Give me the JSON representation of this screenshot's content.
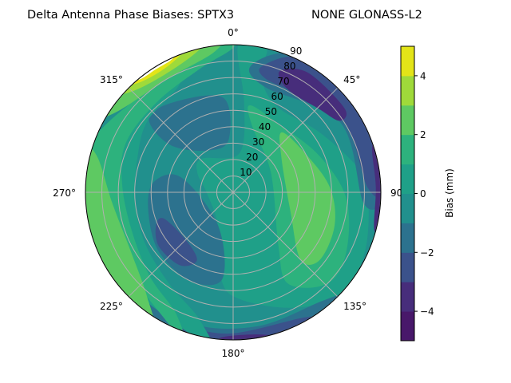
{
  "chart_data": {
    "type": "polar-contour",
    "title_left": "Delta Antenna Phase Biases: SPTX3",
    "title_right": "NONE GLONASS-L2",
    "theta_direction": "clockwise",
    "theta_zero": "north",
    "theta_ticks": [
      "0°",
      "45°",
      "90°",
      "135°",
      "180°",
      "225°",
      "270°",
      "315°"
    ],
    "r_ticks": [
      "10",
      "20",
      "30",
      "40",
      "50",
      "60",
      "70",
      "80",
      "90"
    ],
    "r_range": [
      0,
      90
    ],
    "grid": true,
    "colorbar": {
      "label": "Bias (mm)",
      "range": [
        -5,
        5
      ],
      "ticks": [
        "−4",
        "−2",
        "0",
        "2",
        "4"
      ],
      "tick_values": [
        -4,
        -2,
        0,
        2,
        4
      ],
      "levels": [
        -5,
        -4,
        -3,
        -2,
        -1,
        0,
        1,
        2,
        3,
        4,
        5
      ],
      "colors": [
        "#48186a",
        "#472d7b",
        "#3b528b",
        "#2c728e",
        "#21908d",
        "#1fa088",
        "#2db27d",
        "#5ec962",
        "#9fda3a",
        "#e3e418"
      ],
      "colormap": "viridis"
    },
    "background_level": [
      -1,
      0
    ],
    "regions": [
      {
        "level": [
          0,
          1
        ],
        "points": [
          [
            317,
            28
          ],
          [
            9,
            24
          ],
          [
            7,
            55
          ],
          [
            2,
            90
          ],
          [
            13,
            90
          ],
          [
            13,
            74
          ],
          [
            26,
            59
          ],
          [
            55,
            64
          ],
          [
            78,
            77
          ],
          [
            88,
            82
          ],
          [
            114,
            88
          ],
          [
            134,
            90
          ],
          [
            153,
            79
          ],
          [
            177,
            65
          ],
          [
            188,
            53
          ],
          [
            205,
            22
          ],
          [
            268,
            16
          ],
          [
            299,
            25
          ]
        ]
      },
      {
        "level": [
          1,
          2
        ],
        "points": [
          [
            11,
            54
          ],
          [
            36,
            50
          ],
          [
            67,
            57
          ],
          [
            93,
            69
          ],
          [
            118,
            78
          ],
          [
            134,
            80
          ],
          [
            149,
            65
          ],
          [
            140,
            43
          ],
          [
            62,
            26
          ],
          [
            16,
            42
          ]
        ]
      },
      {
        "level": [
          2,
          3
        ],
        "points": [
          [
            39,
            47
          ],
          [
            62,
            50
          ],
          [
            87,
            59
          ],
          [
            108,
            65
          ],
          [
            128,
            67
          ],
          [
            135,
            58
          ],
          [
            109,
            37
          ],
          [
            55,
            36
          ]
        ]
      },
      {
        "level": [
          -2,
          -1
        ],
        "points": [
          [
            311,
            68
          ],
          [
            326,
            66
          ],
          [
            354,
            58
          ],
          [
            355,
            32
          ],
          [
            328,
            30
          ],
          [
            307,
            48
          ]
        ]
      },
      {
        "level": [
          -2,
          -1
        ],
        "points": [
          [
            277,
            49
          ],
          [
            286,
            33
          ],
          [
            205,
            22
          ],
          [
            187,
            53
          ],
          [
            205,
            60
          ],
          [
            231,
            58
          ],
          [
            257,
            53
          ]
        ]
      },
      {
        "level": [
          -2,
          -1
        ],
        "points": [
          [
            8,
            78
          ],
          [
            24,
            92
          ],
          [
            52,
            92
          ],
          [
            73,
            92
          ],
          [
            92,
            92
          ],
          [
            95,
            80
          ],
          [
            57,
            78
          ],
          [
            17,
            67
          ]
        ]
      },
      {
        "level": [
          -2,
          -1
        ],
        "points": [
          [
            235,
            95
          ],
          [
            200,
            95
          ],
          [
            170,
            95
          ],
          [
            130,
            95
          ],
          [
            140,
            86
          ],
          [
            170,
            83
          ],
          [
            200,
            84
          ],
          [
            235,
            88
          ]
        ]
      },
      {
        "level": [
          -3,
          -2
        ],
        "points": [
          [
            247,
            51
          ],
          [
            249,
            45
          ],
          [
            224,
            41
          ],
          [
            208,
            47
          ],
          [
            216,
            55
          ],
          [
            234,
            56
          ]
        ]
      },
      {
        "level": [
          -3,
          -2
        ],
        "points": [
          [
            13,
            79
          ],
          [
            27,
            92
          ],
          [
            51,
            92
          ],
          [
            65,
            92
          ],
          [
            90,
            92
          ],
          [
            88,
            82
          ],
          [
            59,
            80
          ],
          [
            35,
            72
          ],
          [
            16,
            72
          ]
        ]
      },
      {
        "level": [
          -3,
          -2
        ],
        "points": [
          [
            200,
            95
          ],
          [
            175,
            95
          ],
          [
            145,
            95
          ],
          [
            150,
            88
          ],
          [
            180,
            86
          ],
          [
            200,
            88
          ]
        ]
      },
      {
        "level": [
          -4,
          -3
        ],
        "points": [
          [
            21,
            79
          ],
          [
            32,
            86
          ],
          [
            53,
            85
          ],
          [
            56,
            78
          ],
          [
            46,
            73
          ],
          [
            28,
            71
          ]
        ]
      },
      {
        "level": [
          -4,
          -3
        ],
        "points": [
          [
            105,
            95
          ],
          [
            88,
            95
          ],
          [
            70,
            95
          ],
          [
            72,
            89
          ],
          [
            88,
            87
          ],
          [
            105,
            89
          ]
        ]
      },
      {
        "level": [
          -4,
          -3
        ],
        "points": [
          [
            185,
            95
          ],
          [
            172,
            95
          ],
          [
            160,
            95
          ],
          [
            170,
            88
          ],
          [
            185,
            89
          ]
        ]
      },
      {
        "level": [
          0,
          1
        ],
        "points": [
          [
            190,
            95
          ],
          [
            260,
            95
          ],
          [
            335,
            95
          ],
          [
            335,
            75
          ],
          [
            310,
            68
          ],
          [
            290,
            62
          ],
          [
            265,
            60
          ],
          [
            240,
            62
          ],
          [
            215,
            68
          ],
          [
            195,
            80
          ]
        ]
      },
      {
        "level": [
          1,
          2
        ],
        "points": [
          [
            200,
            95
          ],
          [
            280,
            95
          ],
          [
            360,
            95
          ],
          [
            0,
            88
          ],
          [
            345,
            78
          ],
          [
            320,
            72
          ],
          [
            295,
            72
          ],
          [
            275,
            68
          ],
          [
            250,
            66
          ],
          [
            225,
            72
          ],
          [
            205,
            82
          ]
        ]
      },
      {
        "level": [
          2,
          3
        ],
        "points": [
          [
            212,
            95
          ],
          [
            250,
            95
          ],
          [
            285,
            95
          ],
          [
            285,
            86
          ],
          [
            265,
            74
          ],
          [
            240,
            72
          ],
          [
            220,
            82
          ]
        ]
      },
      {
        "level": [
          2,
          3
        ],
        "points": [
          [
            300,
            95
          ],
          [
            330,
            95
          ],
          [
            355,
            95
          ],
          [
            352,
            86
          ],
          [
            330,
            80
          ],
          [
            305,
            86
          ]
        ]
      },
      {
        "level": [
          3,
          4
        ],
        "points": [
          [
            310,
            95
          ],
          [
            330,
            95
          ],
          [
            350,
            95
          ],
          [
            345,
            88
          ],
          [
            330,
            83
          ],
          [
            315,
            87
          ]
        ]
      },
      {
        "level": [
          4,
          5
        ],
        "points": [
          [
            315,
            95
          ],
          [
            328,
            95
          ],
          [
            342,
            95
          ],
          [
            338,
            89
          ],
          [
            328,
            86
          ],
          [
            318,
            89
          ]
        ]
      }
    ],
    "no_data_points": [
      [
        318,
        96
      ],
      [
        340,
        96
      ],
      [
        336,
        89.6
      ],
      [
        328,
        88.6
      ],
      [
        320,
        89.6
      ]
    ]
  }
}
